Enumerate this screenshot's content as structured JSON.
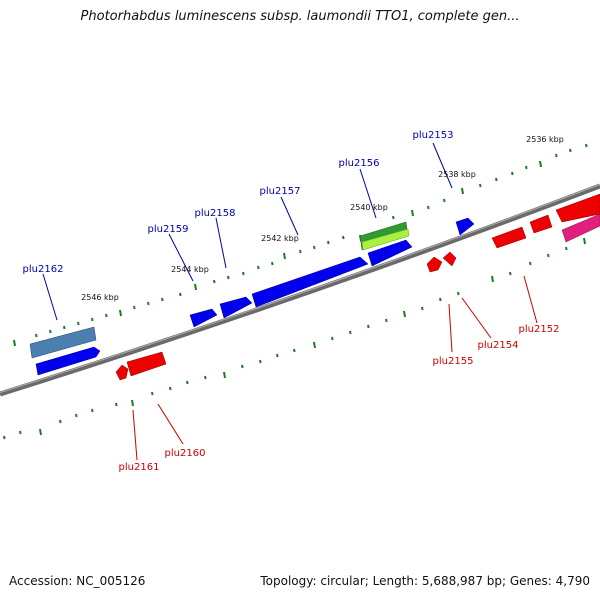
{
  "title": "Photorhabdus luminescens subsp. laumondii TTO1, complete gen...",
  "footer": {
    "accession": "Accession: NC_005126",
    "topology": "Topology: circular; Length: 5,688,987 bp; Genes: 4,790"
  },
  "kbp_labels": [
    "2536 kbp",
    "2538 kbp",
    "2540 kbp",
    "2542 kbp",
    "2544 kbp",
    "2546 kbp"
  ],
  "genes_forward": [
    "plu2153",
    "plu2156",
    "plu2157",
    "plu2158",
    "plu2159",
    "plu2162"
  ],
  "genes_reverse": [
    "plu2152",
    "plu2154",
    "plu2155",
    "plu2160",
    "plu2161"
  ],
  "colors": {
    "forward_gene": "#0000ee",
    "reverse_gene": "#ee0000",
    "reverse_pink_gene": "#e0207a",
    "steelblue_gene": "#4a7fb0",
    "green_gene": "#2f9a2f",
    "lightgreen_gene": "#aaf040",
    "backbone": "#808080",
    "ticks": "#1f7a1f",
    "forward_label": "#0000aa",
    "reverse_label": "#cc0000"
  }
}
